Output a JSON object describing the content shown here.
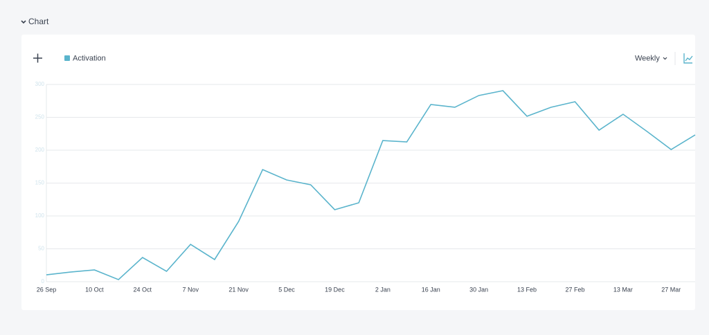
{
  "header": {
    "section_title": "Chart"
  },
  "toolbar": {
    "interval": "Weekly"
  },
  "chart_data": {
    "type": "line",
    "categories": [
      "26 Sep",
      null,
      "10 Oct",
      null,
      "24 Oct",
      null,
      "7 Nov",
      null,
      "21 Nov",
      null,
      "5 Dec",
      null,
      "19 Dec",
      null,
      "2 Jan",
      null,
      "16 Jan",
      null,
      "30 Jan",
      null,
      "13 Feb",
      null,
      "27 Feb",
      null,
      "13 Mar",
      null,
      "27 Mar",
      null
    ],
    "series": [
      {
        "name": "Activation",
        "color": "#5ab4cc",
        "values": [
          10.5,
          14.7,
          17.9,
          3.2,
          36.8,
          15.8,
          56.8,
          33.7,
          91.6,
          170.5,
          154.7,
          147.4,
          109.5,
          120,
          214.7,
          212.6,
          269.5,
          265.3,
          283.2,
          290.5,
          251.6,
          265.3,
          273.7,
          230.5,
          254.7,
          228.4,
          201,
          223.2
        ]
      }
    ],
    "ylim": [
      0,
      300
    ],
    "yticks": [
      0,
      50,
      100,
      150,
      200,
      250,
      300
    ],
    "grid": true,
    "legend": "top-left"
  }
}
